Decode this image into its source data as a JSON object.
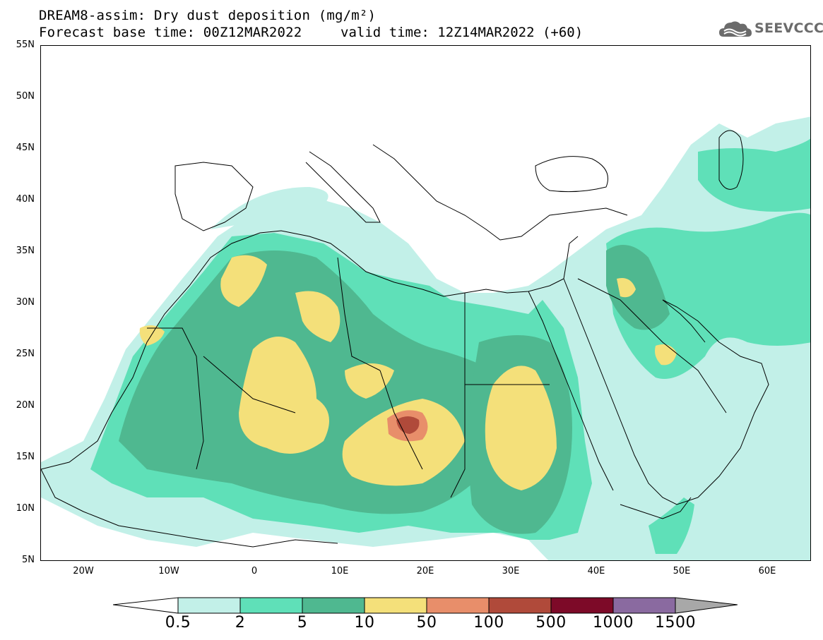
{
  "title": {
    "line1": "DREAM8-assim: Dry dust deposition (mg/m²)",
    "line2": "Forecast base time: 00Z12MAR2022",
    "valid": "valid time: 12Z14MAR2022 (+60)"
  },
  "logo": {
    "text": "SEEVCCC",
    "icon": "cloud-icon"
  },
  "map": {
    "lat_labels": [
      "55N",
      "50N",
      "45N",
      "40N",
      "35N",
      "30N",
      "25N",
      "20N",
      "15N",
      "10N",
      "5N"
    ],
    "lon_labels": [
      "20W",
      "10W",
      "0",
      "10E",
      "20E",
      "30E",
      "40E",
      "50E",
      "60E"
    ],
    "lat_range": [
      5,
      55
    ],
    "lon_range": [
      -25,
      65
    ]
  },
  "legend": {
    "thresholds": [
      "0.5",
      "2",
      "5",
      "10",
      "50",
      "100",
      "500",
      "1000",
      "1500"
    ],
    "colors": [
      "#c2f0e8",
      "#5fe0b8",
      "#4fb890",
      "#f4e07a",
      "#e88e6a",
      "#b04a3a",
      "#7d0a28",
      "#8a6aa0",
      "#a8a8a8"
    ],
    "under_color": "#ffffff",
    "over_color": "#a8a8a8"
  }
}
